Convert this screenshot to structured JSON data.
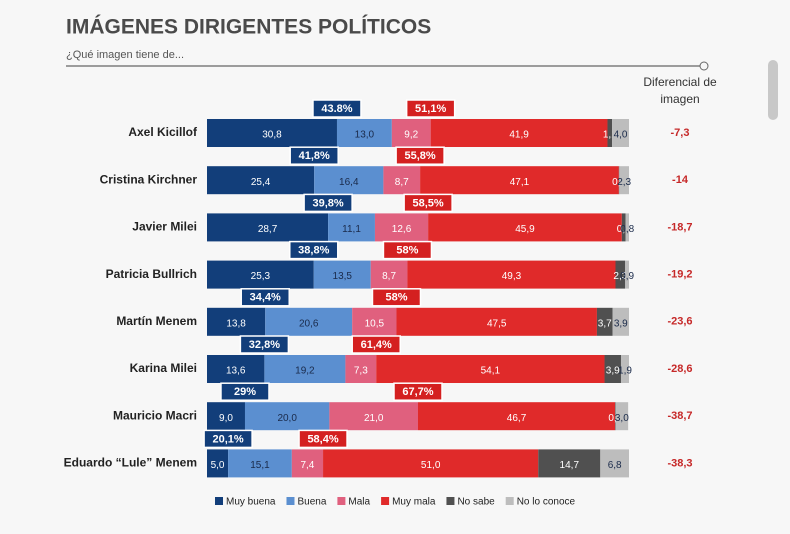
{
  "chart_data": {
    "type": "stacked-bar",
    "title": "IMÁGENES DIRIGENTES POLÍTICOS",
    "subtitle": "¿Qué imagen tiene de...",
    "categories": [
      "Axel Kicillof",
      "Cristina Kirchner",
      "Javier Milei",
      "Patricia Bullrich",
      "Martín Menem",
      "Karina Milei",
      "Mauricio Macri",
      "Eduardo “Lule” Menem"
    ],
    "xlim": [
      0,
      100
    ],
    "series": [
      {
        "name": "Muy buena",
        "color": "#123e7a",
        "values": [
          30.8,
          25.4,
          28.7,
          25.3,
          13.8,
          13.6,
          9.0,
          5.0
        ],
        "value_labels": [
          "30,8",
          "25,4",
          "28,7",
          "25,3",
          "13,8",
          "13,6",
          "9,0",
          "5,0"
        ]
      },
      {
        "name": "Buena",
        "color": "#5b8fd0",
        "values": [
          13.0,
          16.4,
          11.1,
          13.5,
          20.6,
          19.2,
          20.0,
          15.1
        ],
        "value_labels": [
          "13,0",
          "16,4",
          "11,1",
          "13,5",
          "20,6",
          "19,2",
          "20,0",
          "15,1"
        ]
      },
      {
        "name": "Mala",
        "color": "#e0607e",
        "values": [
          9.2,
          8.7,
          12.6,
          8.7,
          10.5,
          7.3,
          21.0,
          7.4
        ],
        "value_labels": [
          "9,2",
          "8,7",
          "12,6",
          "8,7",
          "10,5",
          "7,3",
          "21,0",
          "7,4"
        ]
      },
      {
        "name": "Muy mala",
        "color": "#e02a2a",
        "values": [
          41.9,
          47.1,
          45.9,
          49.3,
          47.5,
          54.1,
          46.7,
          51.0
        ],
        "value_labels": [
          "41,9",
          "47,1",
          "45,9",
          "49,3",
          "47,5",
          "54,1",
          "46,7",
          "51,0"
        ]
      },
      {
        "name": "No  sabe",
        "color": "#505050",
        "values": [
          1.1,
          0.1,
          0.9,
          2.3,
          3.7,
          3.9,
          0.1,
          14.7
        ],
        "value_labels": [
          "1,1",
          "0,1",
          "0,9",
          "2,3",
          "3,7",
          "3,9",
          "0,1",
          "14,7"
        ]
      },
      {
        "name": "No lo conoce",
        "color": "#bdbdbd",
        "values": [
          4.0,
          2.3,
          0.8,
          0.9,
          3.9,
          1.9,
          3.0,
          6.8
        ],
        "value_labels": [
          "4,0",
          "2,3",
          "0,8",
          "0,9",
          "3,9",
          "1,9",
          "3,0",
          "6,8"
        ]
      }
    ],
    "positive": {
      "color": "#123e7a",
      "values": [
        43.8,
        41.8,
        39.8,
        38.8,
        34.4,
        32.8,
        29,
        20.1
      ],
      "value_labels": [
        "43.8%",
        "41,8%",
        "39,8%",
        "38,8%",
        "34,4%",
        "32,8%",
        "29%",
        "20,1%"
      ]
    },
    "negative": {
      "color": "#d42020",
      "values": [
        51.1,
        55.8,
        58.5,
        58,
        58,
        61.4,
        67.7,
        58.4
      ],
      "value_labels": [
        "51,1%",
        "55,8%",
        "58,5%",
        "58%",
        "58%",
        "61,4%",
        "67,7%",
        "58,4%"
      ]
    },
    "differential": {
      "title": "Diferencial de imagen",
      "color": "#c62828",
      "values": [
        -7.3,
        -14,
        -18.7,
        -19.2,
        -23.6,
        -28.6,
        -38.7,
        -38.3
      ],
      "value_labels": [
        "-7,3",
        "-14",
        "-18,7",
        "-19,2",
        "-23,6",
        "-28,6",
        "-38,7",
        "-38,3"
      ]
    }
  }
}
